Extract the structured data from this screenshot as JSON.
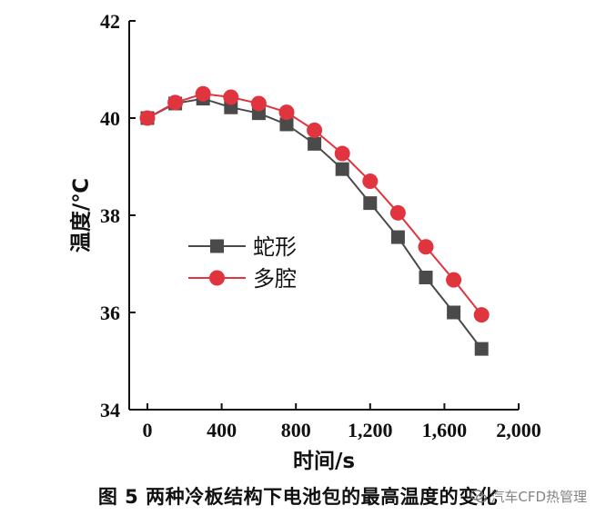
{
  "chart_data": {
    "type": "line",
    "title": "",
    "xlabel": "时间/s",
    "ylabel": "温度/℃",
    "xlim": [
      0,
      2000
    ],
    "ylim": [
      34,
      42
    ],
    "xticks": [
      0,
      400,
      800,
      1200,
      1600,
      2000
    ],
    "xtick_labels": [
      "0",
      "400",
      "800",
      "1,200",
      "1,600",
      "2,000"
    ],
    "yticks": [
      34,
      36,
      38,
      40,
      42
    ],
    "ytick_labels": [
      "34",
      "36",
      "38",
      "40",
      "42"
    ],
    "x": [
      0,
      150,
      300,
      450,
      600,
      750,
      900,
      1050,
      1200,
      1350,
      1500,
      1650,
      1800
    ],
    "series": [
      {
        "name": "蛇形",
        "marker": "square",
        "color": "#4a4a4a",
        "values": [
          40.0,
          40.3,
          40.4,
          40.22,
          40.1,
          39.87,
          39.47,
          38.95,
          38.25,
          37.55,
          36.72,
          36.0,
          35.25
        ]
      },
      {
        "name": "多腔",
        "marker": "circle",
        "color": "#e0343f",
        "values": [
          40.0,
          40.32,
          40.5,
          40.43,
          40.3,
          40.12,
          39.75,
          39.27,
          38.7,
          38.05,
          37.35,
          36.67,
          35.95
        ]
      }
    ],
    "legend_position": "center-left",
    "grid": false
  },
  "caption": "图 5  两种冷板结构下电池包的最高温度的变化",
  "watermark": "汽车CFD热管理",
  "colors": {
    "axis": "#111111"
  }
}
